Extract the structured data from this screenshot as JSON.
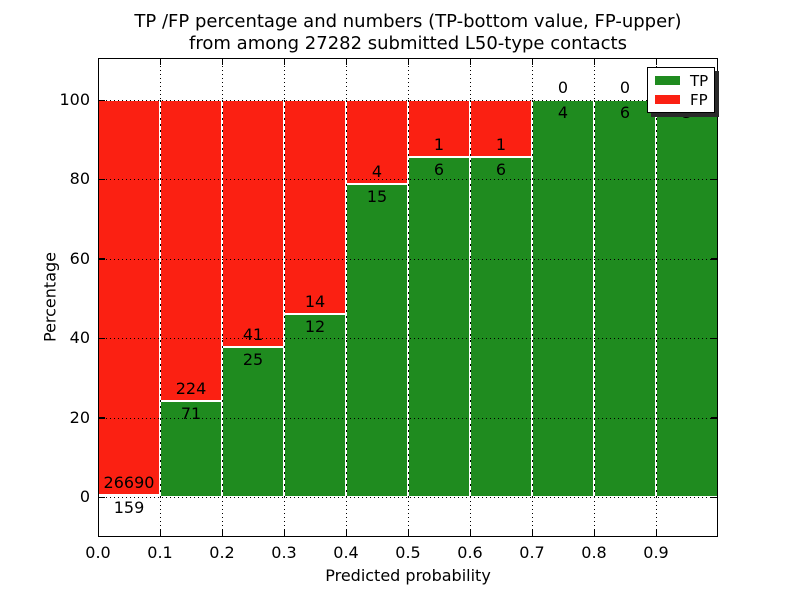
{
  "title": {
    "line1": "TP /FP percentage and numbers (TP-bottom value, FP-upper)",
    "line2": "from among 27282 submitted L50-type contacts"
  },
  "chart_data": {
    "type": "bar",
    "stacked": true,
    "orientation": "vertical",
    "title": "TP /FP percentage and numbers (TP-bottom value, FP-upper) from among 27282 submitted L50-type contacts",
    "xlabel": "Predicted probability",
    "ylabel": "Percentage",
    "bins": [
      "0.0-0.1",
      "0.1-0.2",
      "0.2-0.3",
      "0.3-0.4",
      "0.4-0.5",
      "0.5-0.6",
      "0.6-0.7",
      "0.7-0.8",
      "0.8-0.9",
      "0.9-1.0"
    ],
    "series": [
      {
        "name": "TP",
        "color": "#1f8b1f",
        "values": [
          159,
          71,
          25,
          12,
          15,
          6,
          6,
          4,
          6,
          3
        ]
      },
      {
        "name": "FP",
        "color": "#fb2012",
        "values": [
          26690,
          224,
          41,
          14,
          4,
          1,
          1,
          0,
          0,
          0
        ]
      }
    ],
    "tp_percent_of_bin": [
      0.59,
      24.07,
      37.88,
      46.15,
      78.95,
      85.71,
      85.71,
      100,
      100,
      100
    ],
    "x_tick_labels": [
      "0.0",
      "0.1",
      "0.2",
      "0.3",
      "0.4",
      "0.5",
      "0.6",
      "0.7",
      "0.8",
      "0.9"
    ],
    "y_tick_labels": [
      "0",
      "20",
      "40",
      "60",
      "80",
      "100"
    ],
    "y_tick_values": [
      0,
      20,
      40,
      60,
      80,
      100
    ],
    "xlim": [
      0.0,
      1.0
    ],
    "ylim": [
      -10,
      110
    ],
    "grid": "dotted",
    "legend": {
      "position": "upper right",
      "entries": [
        "TP",
        "FP"
      ]
    },
    "total_contacts": 27282
  }
}
